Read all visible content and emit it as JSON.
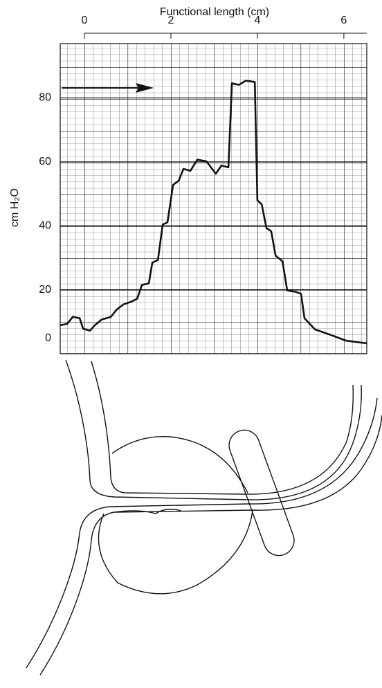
{
  "chart_data": {
    "type": "line",
    "xlabel": "Functional length (cm)",
    "ylabel": "cm H₂O",
    "xlim": [
      -0.56,
      6.53
    ],
    "ylim": [
      0,
      97
    ],
    "xticks": [
      0,
      2,
      4,
      6
    ],
    "yticks": [
      0,
      20,
      40,
      60,
      80
    ],
    "grid": true,
    "series": [
      {
        "color": "#111111",
        "x": [
          -0.56,
          -0.4,
          -0.27,
          -0.11,
          -0.03,
          0.13,
          0.24,
          0.4,
          0.61,
          0.74,
          0.9,
          1.09,
          1.22,
          1.33,
          1.49,
          1.57,
          1.7,
          1.81,
          1.92,
          2.05,
          2.18,
          2.29,
          2.45,
          2.61,
          2.82,
          3.04,
          3.17,
          3.33,
          3.41,
          3.57,
          3.73,
          3.94,
          4.0,
          4.1,
          4.21,
          4.32,
          4.42,
          4.58,
          4.69,
          4.9,
          5.01,
          5.09,
          5.33,
          5.65,
          6.05,
          6.37,
          6.53
        ],
        "values": [
          8.9,
          9.3,
          11.5,
          11.1,
          7.8,
          7.2,
          8.9,
          10.7,
          11.5,
          13.7,
          15.4,
          16.3,
          17.2,
          21.5,
          22,
          28.5,
          29.3,
          40.4,
          41.1,
          52.8,
          54.1,
          57.8,
          57.2,
          60.7,
          60.2,
          56.3,
          58.9,
          58.3,
          84.6,
          84.1,
          85.4,
          85,
          48,
          46.7,
          39.3,
          38.3,
          30.7,
          28.9,
          19.8,
          19.3,
          18.7,
          11.1,
          7.6,
          6.1,
          4.1,
          3.5,
          3.3
        ]
      }
    ]
  }
}
